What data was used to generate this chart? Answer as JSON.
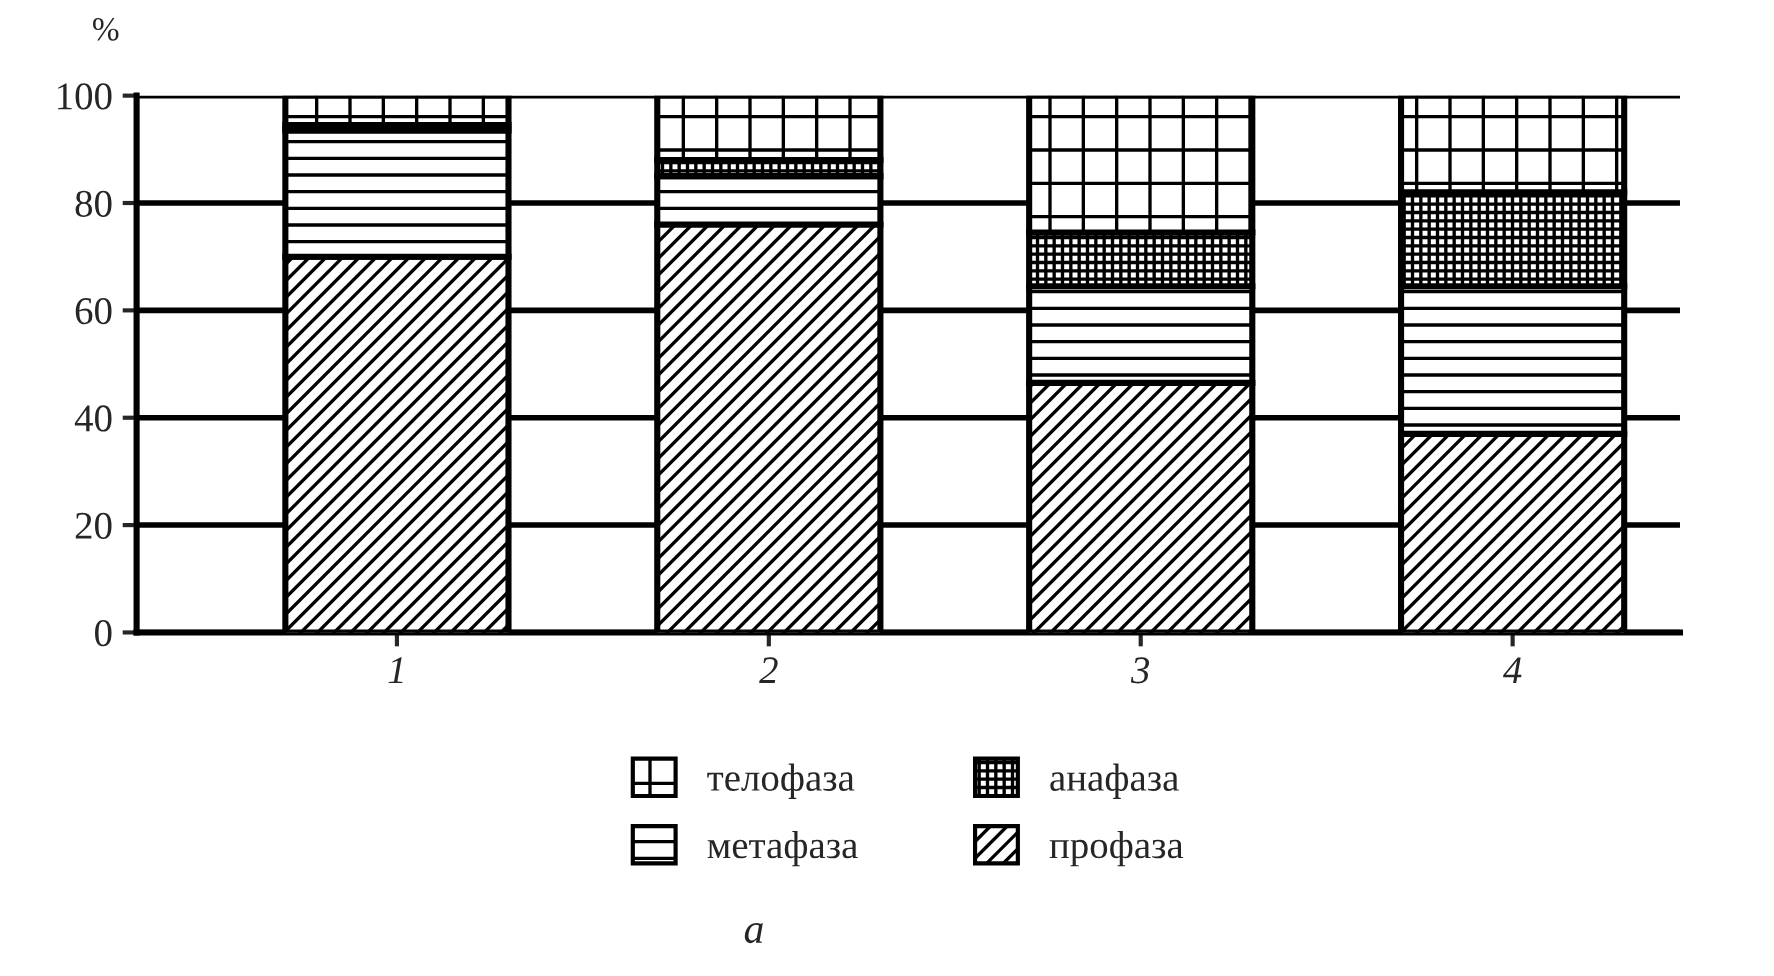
{
  "chart_data": {
    "type": "bar",
    "stacked": true,
    "ylabel": "%",
    "annotations": [
      "а"
    ],
    "categories": [
      "1",
      "2",
      "3",
      "4"
    ],
    "series": [
      {
        "name": "профаза",
        "color": "#000000",
        "values": [
          70,
          76,
          46.5,
          37
        ]
      },
      {
        "name": "метафаза",
        "color": "#000000",
        "values": [
          23.5,
          9,
          18,
          27.5
        ]
      },
      {
        "name": "анафаза",
        "color": "#000000",
        "values": [
          1,
          3,
          10,
          17.5
        ]
      },
      {
        "name": "телофаза",
        "color": "#000000",
        "values": [
          5.5,
          12,
          25.5,
          18
        ]
      }
    ],
    "ylim": [
      0,
      100
    ],
    "yticks": [
      0,
      20,
      40,
      60,
      80,
      100
    ],
    "grid": "y",
    "legend": "bottom"
  }
}
